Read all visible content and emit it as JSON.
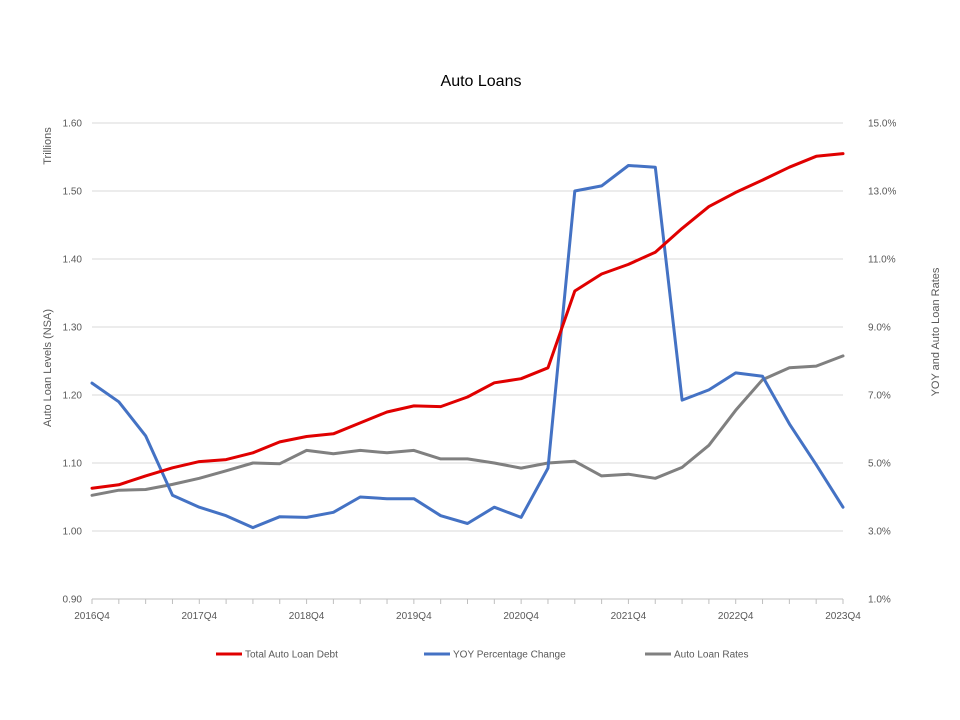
{
  "chart_data": {
    "type": "line",
    "title": "Auto Loans",
    "y_left_label_top": "Trillions",
    "y_left_label": "Auto Loan Levels (NSA)",
    "y_right_label": "YOY and Auto Loan Rates",
    "y_left_range": [
      0.9,
      1.6
    ],
    "y_right_range": [
      1.0,
      15.0
    ],
    "y_left_ticks": [
      "1.60",
      "1.50",
      "1.40",
      "1.30",
      "1.20",
      "1.10",
      "1.00",
      "0.90"
    ],
    "y_right_ticks": [
      "15.0%",
      "13.0%",
      "11.0%",
      "9.0%",
      "7.0%",
      "5.0%",
      "3.0%",
      "1.0%"
    ],
    "x": [
      "2016Q4",
      "2017Q1",
      "2017Q2",
      "2017Q3",
      "2017Q4",
      "2018Q1",
      "2018Q2",
      "2018Q3",
      "2018Q4",
      "2019Q1",
      "2019Q2",
      "2019Q3",
      "2019Q4",
      "2020Q1",
      "2020Q2",
      "2020Q3",
      "2020Q4",
      "2021Q1",
      "2021Q2",
      "2021Q3",
      "2021Q4",
      "2022Q1",
      "2022Q2",
      "2022Q3",
      "2022Q4",
      "2023Q1",
      "2023Q2",
      "2023Q3",
      "2023Q4"
    ],
    "x_tick_labels": [
      "2016Q4",
      "2017Q4",
      "2018Q4",
      "2019Q4",
      "2020Q4",
      "2021Q4",
      "2022Q4",
      "2023Q4"
    ],
    "grid": "horizontal",
    "legend_position": "bottom",
    "series": [
      {
        "name": "Total Auto Loan Debt",
        "axis": "left",
        "color": "#e00000",
        "values": [
          1.063,
          1.068,
          1.081,
          1.093,
          1.102,
          1.105,
          1.115,
          1.131,
          1.139,
          1.143,
          1.159,
          1.175,
          1.184,
          1.183,
          1.197,
          1.218,
          1.224,
          1.24,
          1.353,
          1.378,
          1.392,
          1.41,
          1.445,
          1.477,
          1.498,
          1.516,
          1.535,
          1.551,
          1.555
        ]
      },
      {
        "name": "YOY Percentage Change",
        "axis": "right",
        "color": "#4472c4",
        "values": [
          7.35,
          6.8,
          5.8,
          4.05,
          3.7,
          3.45,
          3.1,
          3.42,
          3.4,
          3.55,
          4.0,
          3.95,
          3.95,
          3.45,
          3.22,
          3.7,
          3.4,
          4.85,
          13.0,
          13.15,
          13.75,
          13.7,
          6.85,
          7.15,
          7.65,
          7.55,
          6.15,
          4.95,
          3.7
        ]
      },
      {
        "name": "Auto Loan Rates",
        "axis": "right",
        "color": "#808080",
        "values": [
          4.05,
          4.2,
          4.22,
          4.37,
          4.55,
          4.77,
          5.0,
          4.98,
          5.37,
          5.27,
          5.37,
          5.3,
          5.37,
          5.12,
          5.12,
          5.0,
          4.85,
          5.0,
          5.05,
          4.62,
          4.67,
          4.55,
          4.87,
          5.52,
          6.55,
          7.45,
          7.8,
          7.85,
          8.15
        ]
      }
    ]
  }
}
